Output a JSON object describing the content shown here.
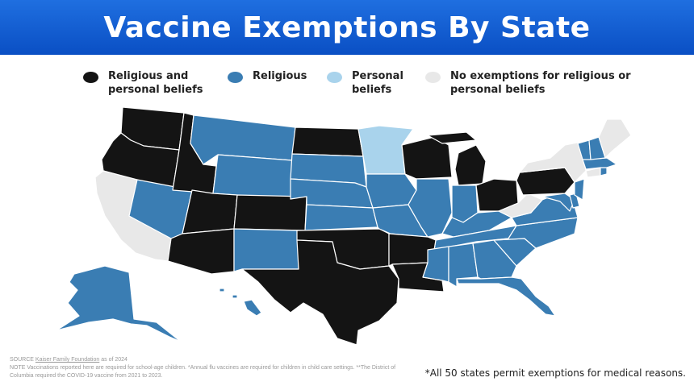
{
  "title": "Vaccine Exemptions By State",
  "legend": [
    {
      "key": "both",
      "label": "Religious and\npersonal beliefs",
      "color": "#141414"
    },
    {
      "key": "religious",
      "label": "Religious",
      "color": "#3a7db3"
    },
    {
      "key": "personal",
      "label": "Personal\nbeliefs",
      "color": "#a9d3ec"
    },
    {
      "key": "none",
      "label": "No exemptions for religious or\npersonal beliefs",
      "color": "#e8e8e8"
    }
  ],
  "source": {
    "prefix": "SOURCE ",
    "link": "Kaiser Family Foundation",
    "suffix": " as of 2024"
  },
  "note": "NOTE Vaccinations reported here are required for school-age children. *Annual flu vaccines are required for children in child care settings. **The District of Columbia required the COVID-19 vaccine from 2021 to 2023.",
  "footnote": "*All 50 states permit exemptions for medical reasons.",
  "state_categories": {
    "WA": "both",
    "OR": "both",
    "ID": "both",
    "UT": "both",
    "AZ": "both",
    "CO": "both",
    "ND": "both",
    "OK": "both",
    "TX": "both",
    "AR": "both",
    "LA": "both",
    "WI": "both",
    "MI": "both",
    "OH": "both",
    "PA": "both",
    "MT": "religious",
    "WY": "religious",
    "NV": "religious",
    "NM": "religious",
    "SD": "religious",
    "NE": "religious",
    "KS": "religious",
    "IA": "religious",
    "MO": "religious",
    "IL": "religious",
    "IN": "religious",
    "KY": "religious",
    "TN": "religious",
    "MS": "religious",
    "AL": "religious",
    "GA": "religious",
    "FL": "religious",
    "SC": "religious",
    "NC": "religious",
    "VA": "religious",
    "MD": "religious",
    "DE": "religious",
    "NJ": "religious",
    "VT": "religious",
    "NH": "religious",
    "MA": "religious",
    "RI": "religious",
    "AK": "religious",
    "HI": "religious",
    "MN": "personal",
    "CA": "none",
    "WV": "none",
    "NY": "none",
    "CT": "none",
    "ME": "none"
  }
}
